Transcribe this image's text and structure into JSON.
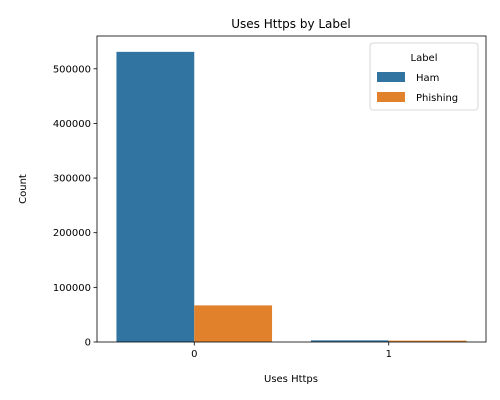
{
  "chart_data": {
    "type": "bar",
    "title": "Uses Https by Label",
    "xlabel": "Uses Https",
    "ylabel": "Count",
    "categories": [
      "0",
      "1"
    ],
    "series": [
      {
        "name": "Ham",
        "color": "#3274a1",
        "values": [
          531000,
          3000
        ]
      },
      {
        "name": "Phishing",
        "color": "#e1812c",
        "values": [
          67000,
          2500
        ]
      }
    ],
    "ylim": [
      0,
      560000
    ],
    "yticks": [
      0,
      100000,
      200000,
      300000,
      400000,
      500000
    ],
    "ytick_labels": [
      "0",
      "100000",
      "200000",
      "300000",
      "400000",
      "500000"
    ],
    "grid": false,
    "legend": {
      "title": "Label",
      "placement": "top-right"
    }
  }
}
